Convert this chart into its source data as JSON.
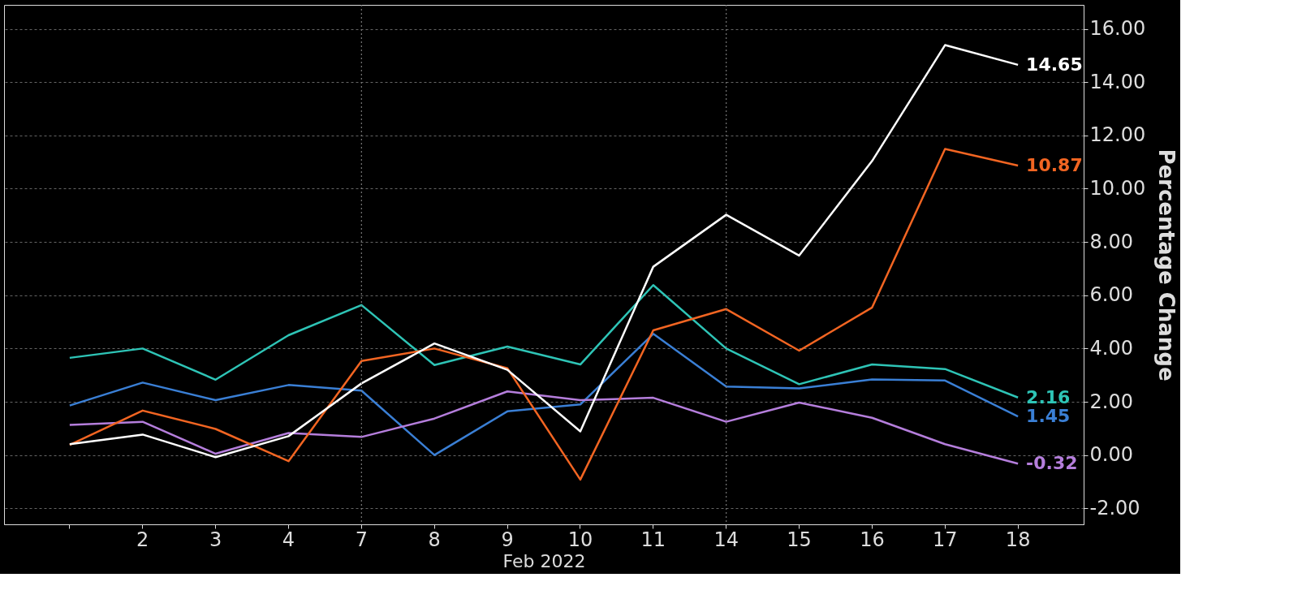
{
  "chart_data": {
    "type": "line",
    "xlabel": "Feb 2022",
    "ylabel": "Percentage Change",
    "categories": [
      null,
      "2",
      "3",
      "4",
      "7",
      "8",
      "9",
      "10",
      "11",
      "14",
      "15",
      "16",
      "17",
      "18"
    ],
    "series": [
      {
        "color": "#2ec4b6",
        "values": [
          3.65,
          4.0,
          2.83,
          4.5,
          5.63,
          3.38,
          4.07,
          3.4,
          6.38,
          4.0,
          2.66,
          3.4,
          3.23,
          2.16
        ],
        "value_labels": [
          null,
          null,
          null,
          null,
          null,
          null,
          null,
          null,
          null,
          null,
          null,
          null,
          null,
          "2.16"
        ]
      },
      {
        "color": "#3a7fd5",
        "values": [
          1.86,
          2.72,
          2.06,
          2.63,
          2.42,
          0.0,
          1.64,
          1.9,
          4.55,
          2.57,
          2.5,
          2.84,
          2.8,
          1.45
        ],
        "value_labels": [
          null,
          null,
          null,
          null,
          null,
          null,
          null,
          null,
          null,
          null,
          null,
          null,
          null,
          "1.45"
        ]
      },
      {
        "color": "#b57edc",
        "values": [
          1.13,
          1.25,
          0.05,
          0.83,
          0.68,
          1.37,
          2.39,
          2.06,
          2.15,
          1.25,
          1.97,
          1.4,
          0.41,
          -0.32
        ],
        "value_labels": [
          null,
          null,
          null,
          null,
          null,
          null,
          null,
          null,
          null,
          null,
          null,
          null,
          null,
          "-0.32"
        ]
      },
      {
        "color": "#f26522",
        "values": [
          0.38,
          1.67,
          0.98,
          -0.23,
          3.53,
          4.0,
          3.26,
          -0.92,
          4.68,
          5.48,
          3.92,
          5.54,
          11.49,
          10.87
        ],
        "value_labels": [
          null,
          null,
          null,
          null,
          null,
          null,
          null,
          null,
          null,
          null,
          null,
          null,
          null,
          "10.87"
        ]
      },
      {
        "color": "#ffffff",
        "values": [
          0.41,
          0.77,
          -0.08,
          0.71,
          2.69,
          4.19,
          3.2,
          0.89,
          7.07,
          9.02,
          7.49,
          11.04,
          15.39,
          14.65
        ],
        "value_labels": [
          null,
          null,
          null,
          null,
          null,
          null,
          null,
          null,
          null,
          null,
          null,
          null,
          null,
          "14.65"
        ]
      }
    ],
    "ylim": [
      -2.6,
      16.9
    ],
    "yticks": [
      {
        "value": -2,
        "label": "-2.00"
      },
      {
        "value": 0,
        "label": "0.00"
      },
      {
        "value": 2,
        "label": "2.00"
      },
      {
        "value": 4,
        "label": "4.00"
      },
      {
        "value": 6,
        "label": "6.00"
      },
      {
        "value": 8,
        "label": "8.00"
      },
      {
        "value": 10,
        "label": "10.00"
      },
      {
        "value": 12,
        "label": "12.00"
      },
      {
        "value": 14,
        "label": "14.00"
      },
      {
        "value": 16,
        "label": "16.00"
      }
    ],
    "grid": "y",
    "ref_lines": [
      {
        "axis": "x",
        "value": "7",
        "color": "#777777",
        "line_style": "dotted"
      },
      {
        "axis": "x",
        "value": "14",
        "color": "#777777",
        "line_style": "dotted"
      }
    ],
    "legend": false,
    "marker": "none",
    "line_style": "solid"
  }
}
